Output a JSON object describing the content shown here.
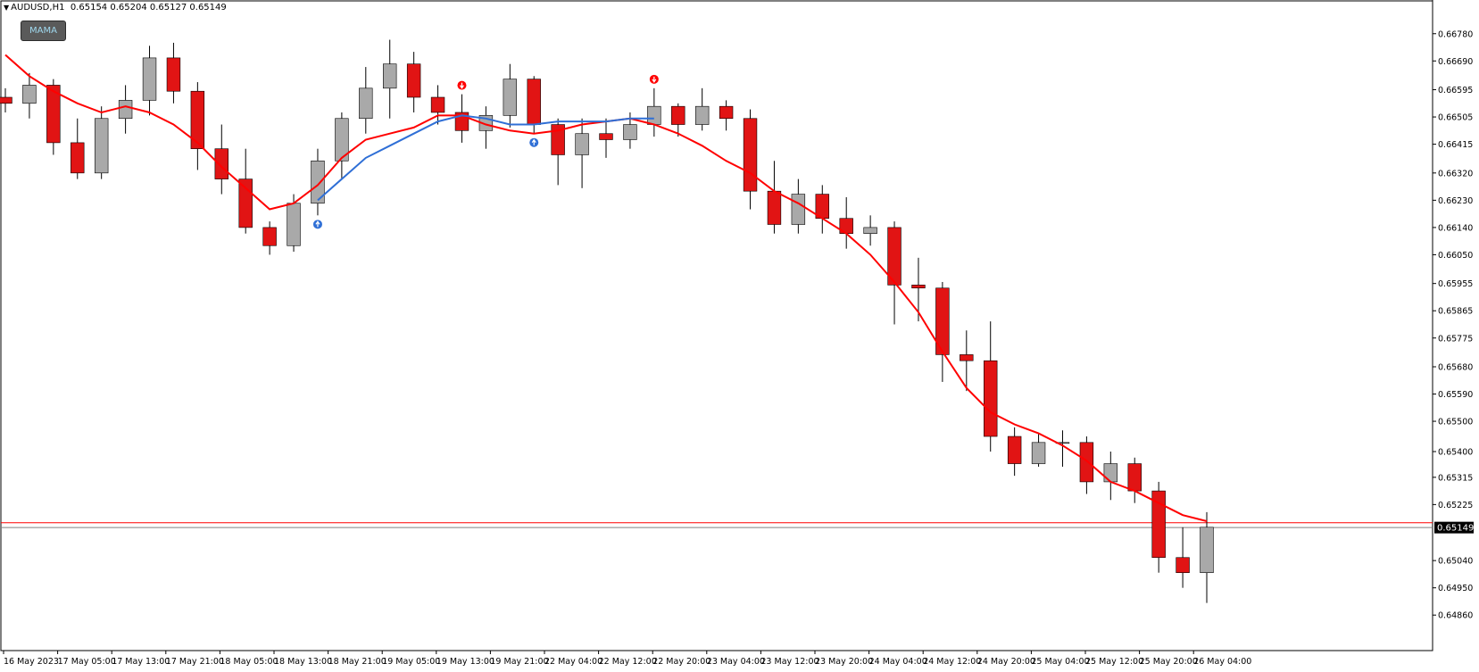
{
  "header": {
    "symbol": "AUDUSD,H1",
    "ohlc": "0.65154 0.65204 0.65127 0.65149"
  },
  "buttons": {
    "mama_label": "MAMA"
  },
  "colors": {
    "bull_candle": "#a9a9a9",
    "bear_candle": "#e11414",
    "wick": "#000000",
    "mama_line": "#ff0000",
    "fama_line": "#2f6fd6",
    "current_price_line": "#ff0000",
    "bid_line": "#808080",
    "background": "#ffffff"
  },
  "icons": {
    "sell_signal": "red-down-arrow-icon",
    "buy_signal": "blue-up-arrow-icon"
  },
  "chart_data": {
    "type": "candlestick",
    "symbol": "AUDUSD",
    "timeframe": "H1",
    "grid": false,
    "price_axis_position": "right",
    "ylim": [
      0.6484,
      0.6685
    ],
    "y_ticks": [
      "0.66780",
      "0.66690",
      "0.66595",
      "0.66505",
      "0.66415",
      "0.66320",
      "0.66230",
      "0.66140",
      "0.66050",
      "0.65955",
      "0.65865",
      "0.65775",
      "0.65680",
      "0.65590",
      "0.65500",
      "0.65400",
      "0.65315",
      "0.65225",
      "0.65040",
      "0.64950",
      "0.64860"
    ],
    "x_ticks": [
      "16 May 2023",
      "17 May 05:00",
      "17 May 13:00",
      "17 May 21:00",
      "18 May 05:00",
      "18 May 13:00",
      "18 May 21:00",
      "19 May 05:00",
      "19 May 13:00",
      "19 May 21:00",
      "22 May 04:00",
      "22 May 12:00",
      "22 May 20:00",
      "23 May 04:00",
      "23 May 12:00",
      "23 May 20:00",
      "24 May 04:00",
      "24 May 12:00",
      "24 May 20:00",
      "25 May 04:00",
      "25 May 12:00",
      "25 May 20:00",
      "26 May 04:00"
    ],
    "current_price": "0.65149",
    "current_price_value": 0.65149,
    "ask_price_value": 0.65165,
    "series": [
      {
        "name": "MAMA",
        "color": "#ff0000",
        "values": [
          0.6671,
          0.6664,
          0.6659,
          0.6655,
          0.6652,
          0.6654,
          0.6652,
          0.6648,
          0.6642,
          0.6634,
          0.6627,
          0.662,
          0.6622,
          0.6628,
          0.6637,
          0.6643,
          0.6645,
          0.6647,
          0.6651,
          0.6651,
          0.6648,
          0.6646,
          0.6645,
          0.6646,
          0.6648,
          0.6649,
          0.665,
          0.6648,
          0.6645,
          0.6641,
          0.6636,
          0.6632,
          0.6626,
          0.6622,
          0.6617,
          0.6612,
          0.6605,
          0.6596,
          0.6586,
          0.6573,
          0.6561,
          0.6553,
          0.6549,
          0.6546,
          0.6542,
          0.6537,
          0.653,
          0.6527,
          0.6523,
          0.6519,
          0.6517
        ]
      },
      {
        "name": "FAMA",
        "color": "#2f6fd6",
        "values": [
          null,
          null,
          null,
          null,
          null,
          null,
          null,
          null,
          null,
          null,
          null,
          null,
          null,
          0.6623,
          0.663,
          0.6637,
          0.6641,
          0.6645,
          0.6649,
          0.6651,
          0.665,
          0.6648,
          0.6648,
          0.6649,
          0.6649,
          0.6649,
          0.665,
          0.665,
          null,
          null,
          null,
          null,
          null,
          null,
          null,
          null,
          null,
          null,
          null,
          null,
          null,
          null,
          null,
          null,
          null,
          null,
          null,
          null,
          null,
          null,
          null
        ]
      }
    ],
    "candles": [
      {
        "o": 0.6657,
        "h": 0.666,
        "l": 0.6652,
        "c": 0.6655
      },
      {
        "o": 0.6655,
        "h": 0.6665,
        "l": 0.665,
        "c": 0.6661
      },
      {
        "o": 0.6661,
        "h": 0.6663,
        "l": 0.6638,
        "c": 0.6642
      },
      {
        "o": 0.6642,
        "h": 0.665,
        "l": 0.663,
        "c": 0.6632
      },
      {
        "o": 0.6632,
        "h": 0.6654,
        "l": 0.663,
        "c": 0.665
      },
      {
        "o": 0.665,
        "h": 0.6661,
        "l": 0.6645,
        "c": 0.6656
      },
      {
        "o": 0.6656,
        "h": 0.6674,
        "l": 0.6651,
        "c": 0.667
      },
      {
        "o": 0.667,
        "h": 0.6675,
        "l": 0.6655,
        "c": 0.6659
      },
      {
        "o": 0.6659,
        "h": 0.6662,
        "l": 0.6633,
        "c": 0.664
      },
      {
        "o": 0.664,
        "h": 0.6648,
        "l": 0.6625,
        "c": 0.663
      },
      {
        "o": 0.663,
        "h": 0.664,
        "l": 0.6612,
        "c": 0.6614
      },
      {
        "o": 0.6614,
        "h": 0.6616,
        "l": 0.6605,
        "c": 0.6608
      },
      {
        "o": 0.6608,
        "h": 0.6625,
        "l": 0.6606,
        "c": 0.6622
      },
      {
        "o": 0.6622,
        "h": 0.664,
        "l": 0.6618,
        "c": 0.6636
      },
      {
        "o": 0.6636,
        "h": 0.6652,
        "l": 0.663,
        "c": 0.665
      },
      {
        "o": 0.665,
        "h": 0.6667,
        "l": 0.6645,
        "c": 0.666
      },
      {
        "o": 0.666,
        "h": 0.6676,
        "l": 0.665,
        "c": 0.6668
      },
      {
        "o": 0.6668,
        "h": 0.6672,
        "l": 0.6652,
        "c": 0.6657
      },
      {
        "o": 0.6657,
        "h": 0.6661,
        "l": 0.6648,
        "c": 0.6652
      },
      {
        "o": 0.6652,
        "h": 0.6658,
        "l": 0.6642,
        "c": 0.6646
      },
      {
        "o": 0.6646,
        "h": 0.6654,
        "l": 0.664,
        "c": 0.6651
      },
      {
        "o": 0.6651,
        "h": 0.6668,
        "l": 0.6647,
        "c": 0.6663
      },
      {
        "o": 0.6663,
        "h": 0.6664,
        "l": 0.6645,
        "c": 0.6648
      },
      {
        "o": 0.6648,
        "h": 0.665,
        "l": 0.6628,
        "c": 0.6638
      },
      {
        "o": 0.6638,
        "h": 0.665,
        "l": 0.6627,
        "c": 0.6645
      },
      {
        "o": 0.6645,
        "h": 0.665,
        "l": 0.6637,
        "c": 0.6643
      },
      {
        "o": 0.6643,
        "h": 0.6652,
        "l": 0.664,
        "c": 0.6648
      },
      {
        "o": 0.6648,
        "h": 0.666,
        "l": 0.6644,
        "c": 0.6654
      },
      {
        "o": 0.6654,
        "h": 0.6655,
        "l": 0.6644,
        "c": 0.6648
      },
      {
        "o": 0.6648,
        "h": 0.666,
        "l": 0.6646,
        "c": 0.6654
      },
      {
        "o": 0.6654,
        "h": 0.6656,
        "l": 0.6646,
        "c": 0.665
      },
      {
        "o": 0.665,
        "h": 0.6653,
        "l": 0.662,
        "c": 0.6626
      },
      {
        "o": 0.6626,
        "h": 0.6636,
        "l": 0.6612,
        "c": 0.6615
      },
      {
        "o": 0.6615,
        "h": 0.663,
        "l": 0.6612,
        "c": 0.6625
      },
      {
        "o": 0.6625,
        "h": 0.6628,
        "l": 0.6612,
        "c": 0.6617
      },
      {
        "o": 0.6617,
        "h": 0.6624,
        "l": 0.6607,
        "c": 0.6612
      },
      {
        "o": 0.6612,
        "h": 0.6618,
        "l": 0.6608,
        "c": 0.6614
      },
      {
        "o": 0.6614,
        "h": 0.6616,
        "l": 0.6582,
        "c": 0.6595
      },
      {
        "o": 0.6595,
        "h": 0.6604,
        "l": 0.6583,
        "c": 0.6594
      },
      {
        "o": 0.6594,
        "h": 0.6596,
        "l": 0.6563,
        "c": 0.6572
      },
      {
        "o": 0.6572,
        "h": 0.658,
        "l": 0.656,
        "c": 0.657
      },
      {
        "o": 0.657,
        "h": 0.6583,
        "l": 0.654,
        "c": 0.6545
      },
      {
        "o": 0.6545,
        "h": 0.6548,
        "l": 0.6532,
        "c": 0.6536
      },
      {
        "o": 0.6536,
        "h": 0.6546,
        "l": 0.6535,
        "c": 0.6543
      },
      {
        "o": 0.6543,
        "h": 0.6547,
        "l": 0.6535,
        "c": 0.6543
      },
      {
        "o": 0.6543,
        "h": 0.6545,
        "l": 0.6526,
        "c": 0.653
      },
      {
        "o": 0.653,
        "h": 0.654,
        "l": 0.6524,
        "c": 0.6536
      },
      {
        "o": 0.6536,
        "h": 0.6538,
        "l": 0.6523,
        "c": 0.6527
      },
      {
        "o": 0.6527,
        "h": 0.653,
        "l": 0.65,
        "c": 0.6505
      },
      {
        "o": 0.6505,
        "h": 0.6515,
        "l": 0.6495,
        "c": 0.65
      },
      {
        "o": 0.65,
        "h": 0.652,
        "l": 0.649,
        "c": 0.6515
      }
    ],
    "signals": [
      {
        "type": "sell",
        "index": 19
      },
      {
        "type": "buy",
        "index": 13
      },
      {
        "type": "buy",
        "index": 22
      },
      {
        "type": "sell",
        "index": 27
      }
    ]
  }
}
